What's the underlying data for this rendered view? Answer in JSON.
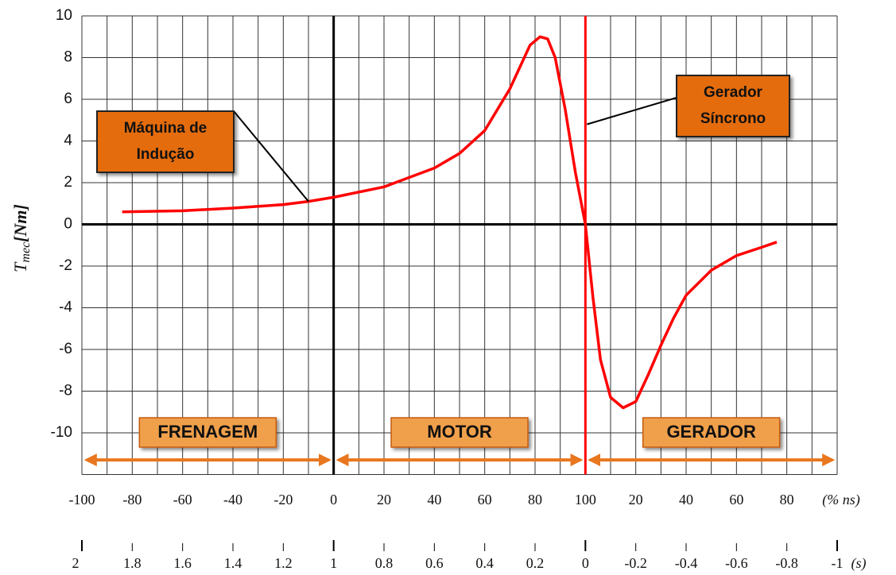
{
  "chart_data": {
    "type": "line",
    "ylabel": {
      "symbol": "T",
      "subscript": "mec",
      "unit": "[Nm]"
    },
    "xunit": "(% ns)",
    "x2unit": "(s)",
    "x": [
      -84,
      -60,
      -40,
      -20,
      -10,
      0,
      20,
      40,
      50,
      60,
      70,
      78,
      82,
      85,
      88,
      92,
      96,
      100,
      103,
      106,
      110,
      115,
      120,
      125,
      130,
      135,
      140,
      150,
      160,
      170,
      176
    ],
    "series": [
      {
        "color": "#ff0000",
        "values": [
          0.6,
          0.65,
          0.78,
          0.95,
          1.1,
          1.3,
          1.8,
          2.7,
          3.4,
          4.5,
          6.5,
          8.6,
          9.0,
          8.9,
          8.0,
          5.5,
          2.5,
          0,
          -3.5,
          -6.5,
          -8.3,
          -8.8,
          -8.5,
          -7.2,
          -5.8,
          -4.5,
          -3.4,
          -2.2,
          -1.5,
          -1.1,
          -0.85
        ]
      }
    ],
    "xlim": [
      -100,
      200
    ],
    "ylim": [
      -12,
      10
    ],
    "xticks": [
      -100,
      -80,
      -60,
      -40,
      -20,
      0,
      20,
      40,
      60,
      80,
      100,
      {
        "value": 120,
        "label": "20"
      },
      {
        "value": 140,
        "label": "40"
      },
      {
        "value": 160,
        "label": "60"
      },
      {
        "value": 180,
        "label": "80"
      }
    ],
    "yticks": [
      -10,
      -8,
      -6,
      -4,
      -2,
      0,
      2,
      4,
      6,
      8,
      10
    ],
    "xgridlines": [
      -100,
      -90,
      -80,
      -70,
      -60,
      -50,
      -40,
      -30,
      -20,
      -10,
      0,
      10,
      20,
      30,
      40,
      50,
      60,
      70,
      80,
      90,
      100,
      110,
      120,
      130,
      140,
      150,
      160,
      170,
      180,
      190,
      200
    ],
    "ygridlines": [
      -12,
      -10,
      -8,
      -6,
      -4,
      -2,
      0,
      2,
      4,
      6,
      8,
      10
    ],
    "x2lim": [
      2,
      -1
    ],
    "x2ticks": [
      2,
      1.8,
      1.6,
      1.4,
      1.2,
      1,
      0.8,
      0.6,
      0.4,
      0.2,
      0,
      -0.2,
      -0.4,
      -0.6,
      -0.8,
      -1
    ],
    "reference_lines": [
      {
        "axis": "x",
        "value": 0,
        "color": "#000000"
      },
      {
        "axis": "x",
        "value": 100,
        "color": "#ff0000"
      },
      {
        "axis": "y",
        "value": 0,
        "color": "#000000"
      }
    ],
    "annotations": [
      {
        "lines": [
          "Máquina de",
          "Indução"
        ]
      },
      {
        "lines": [
          "Gerador",
          "Síncrono"
        ]
      }
    ],
    "regions": [
      {
        "label": "FRENAGEM",
        "from": -100,
        "to": 0
      },
      {
        "label": "MOTOR",
        "from": 0,
        "to": 100
      },
      {
        "label": "GERADOR",
        "from": 100,
        "to": 200
      }
    ]
  }
}
